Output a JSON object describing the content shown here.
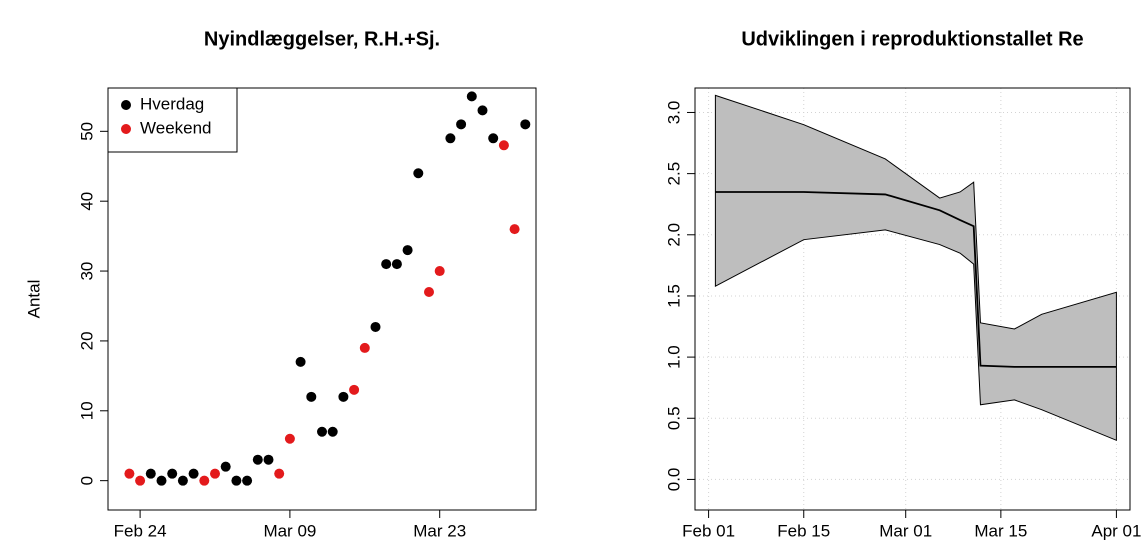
{
  "chart_data": [
    {
      "type": "scatter",
      "title": "Nyindlæggelser, R.H.+Sj.",
      "y_label": "Antal",
      "series": [
        {
          "name": "Hverdag",
          "color": "#000000",
          "x": [
            "Feb 25",
            "Feb 26",
            "Feb 27",
            "Feb 28",
            "Feb 29",
            "Mar 03",
            "Mar 04",
            "Mar 05",
            "Mar 06",
            "Mar 07",
            "Mar 10",
            "Mar 11",
            "Mar 12",
            "Mar 13",
            "Mar 14",
            "Mar 17",
            "Mar 18",
            "Mar 19",
            "Mar 20",
            "Mar 21",
            "Mar 24",
            "Mar 25",
            "Mar 26",
            "Mar 27",
            "Mar 28",
            "Mar 31"
          ],
          "values": [
            1,
            0,
            1,
            0,
            1,
            2,
            0,
            0,
            3,
            3,
            17,
            12,
            7,
            7,
            12,
            22,
            31,
            31,
            33,
            44,
            49,
            51,
            55,
            53,
            49,
            51
          ]
        },
        {
          "name": "Weekend",
          "color": "#e31a1c",
          "x": [
            "Feb 23",
            "Feb 24",
            "Mar 01",
            "Mar 02",
            "Mar 08",
            "Mar 09",
            "Mar 15",
            "Mar 16",
            "Mar 22",
            "Mar 23",
            "Mar 29",
            "Mar 30"
          ],
          "values": [
            1,
            0,
            0,
            1,
            1,
            6,
            13,
            19,
            27,
            30,
            48,
            36
          ]
        }
      ],
      "xlim": [
        "Feb 21",
        "Apr 01"
      ],
      "xticks": [
        "Feb 24",
        "Mar 09",
        "Mar 23"
      ],
      "ylim": [
        -4.2,
        56.2
      ],
      "yticks": [
        0,
        10,
        20,
        30,
        40,
        50
      ],
      "legend": "topleft",
      "grid": false
    },
    {
      "type": "band-line",
      "title": "Udviklingen i reproduktionstallet Re",
      "x": [
        "Feb 02",
        "Feb 15",
        "Feb 27",
        "Mar 06",
        "Mar 09",
        "Mar 11",
        "Mar 12",
        "Mar 17",
        "Mar 21",
        "Apr 01"
      ],
      "values": [
        2.35,
        2.35,
        2.33,
        2.2,
        2.12,
        2.07,
        0.93,
        0.92,
        0.92,
        0.92
      ],
      "upper": [
        3.14,
        2.9,
        2.62,
        2.3,
        2.35,
        2.43,
        1.28,
        1.23,
        1.35,
        1.53
      ],
      "lower": [
        1.58,
        1.96,
        2.04,
        1.92,
        1.85,
        1.76,
        0.61,
        0.65,
        0.57,
        0.32
      ],
      "line_color": "#000000",
      "band_color": "#bebebe",
      "xlim": [
        "Jan 30",
        "Apr 03"
      ],
      "xticks": [
        "Feb 01",
        "Feb 15",
        "Mar 01",
        "Mar 15",
        "Apr 01"
      ],
      "ylim": [
        -0.25,
        3.2
      ],
      "yticks": [
        {
          "value": 0,
          "label": "0.0"
        },
        {
          "value": 0.5,
          "label": "0.5"
        },
        {
          "value": 1,
          "label": "1.0"
        },
        {
          "value": 1.5,
          "label": "1.5"
        },
        {
          "value": 2,
          "label": "2.0"
        },
        {
          "value": 2.5,
          "label": "2.5"
        },
        {
          "value": 3,
          "label": "3.0"
        }
      ],
      "grid": true
    }
  ]
}
